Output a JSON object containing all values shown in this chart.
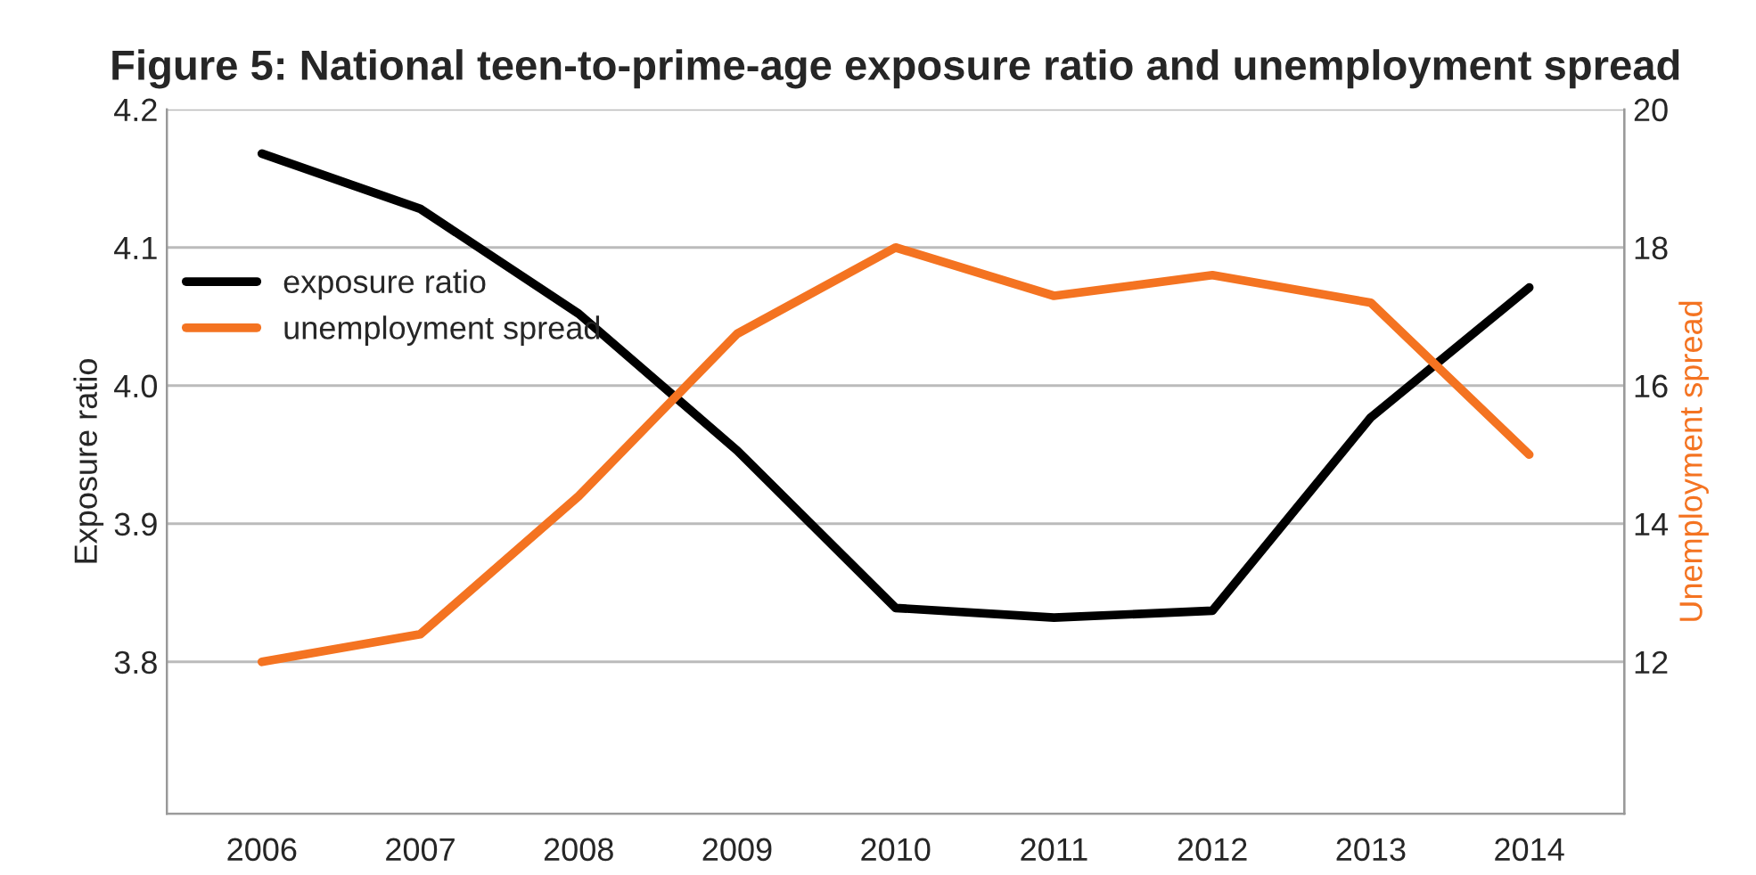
{
  "chart_data": {
    "type": "line",
    "title": "Figure 5: National teen-to-prime-age exposure ratio and unemployment spread",
    "categories": [
      "2006",
      "2007",
      "2008",
      "2009",
      "2010",
      "2011",
      "2012",
      "2013",
      "2014"
    ],
    "series": [
      {
        "name": "exposure ratio",
        "color": "#000000",
        "values": [
          4.168,
          4.128,
          4.052,
          3.953,
          3.839,
          3.832,
          3.837,
          3.977,
          4.071
        ]
      },
      {
        "name": "unemployment spread",
        "color": "#f47321",
        "axis": "y2",
        "values": [
          12.0,
          12.4,
          14.4,
          16.75,
          18.0,
          17.3,
          17.6,
          17.2,
          15.0
        ]
      }
    ],
    "ylabel": "Exposure ratio",
    "y2label": "Unemployment spread",
    "ylim": [
      3.69,
      4.2
    ],
    "yticks": [
      {
        "value": 3.8,
        "label": "3.8"
      },
      {
        "value": 3.9,
        "label": "3.9"
      },
      {
        "value": 4.0,
        "label": "4.0"
      },
      {
        "value": 4.1,
        "label": "4.1"
      },
      {
        "value": 4.2,
        "label": "4.2"
      }
    ],
    "y2lim": [
      9.8,
      20
    ],
    "y2ticks": [
      12,
      14,
      16,
      18,
      20
    ],
    "grid": "y",
    "legend": "top left",
    "line_style": "solid",
    "marker": "none"
  }
}
